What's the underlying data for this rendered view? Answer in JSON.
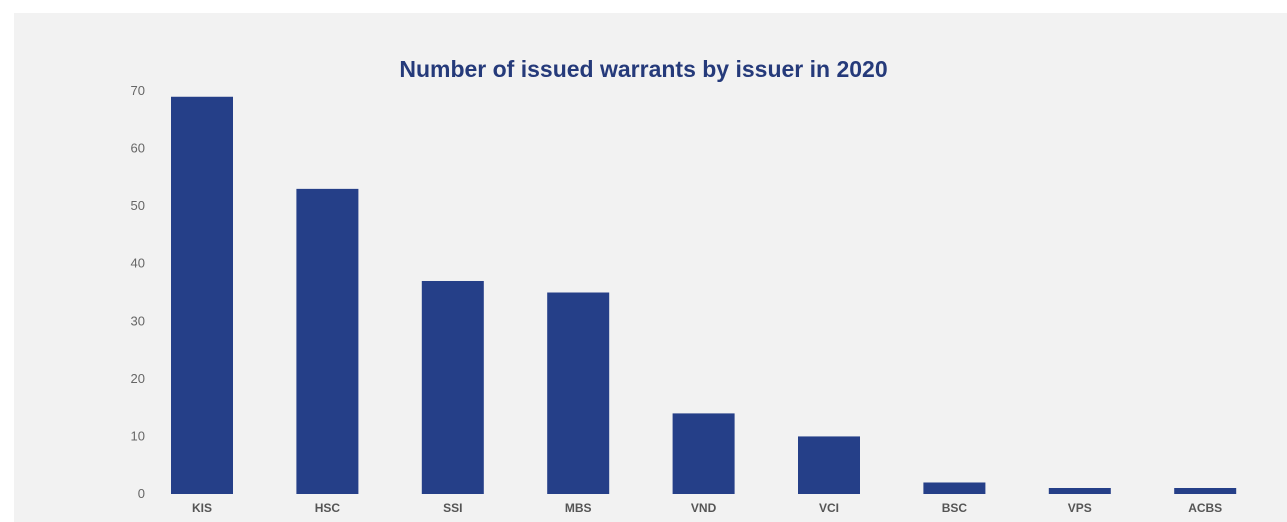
{
  "chart_data": {
    "type": "bar",
    "title": "Number of issued warrants by issuer in 2020",
    "categories": [
      "KIS",
      "HSC",
      "SSI",
      "MBS",
      "VND",
      "VCI",
      "BSC",
      "VPS",
      "ACBS"
    ],
    "values": [
      69,
      53,
      37,
      35,
      14,
      10,
      2,
      0,
      0
    ],
    "ylim": [
      0,
      70
    ],
    "yticks": [
      0,
      10,
      20,
      30,
      40,
      50,
      60,
      70
    ],
    "grid": false,
    "colors": {
      "bar": "#253f88",
      "title": "#253a7a",
      "background": "#f2f2f2"
    }
  }
}
